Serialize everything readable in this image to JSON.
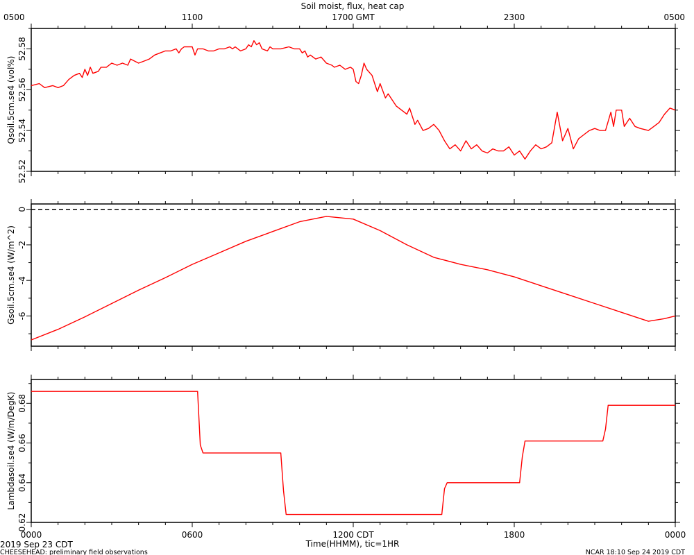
{
  "top_axis": {
    "title": "Soil moist, flux, heat cap",
    "ticks": [
      {
        "hour": 0,
        "label": "0500"
      },
      {
        "hour": 6,
        "label": "1100"
      },
      {
        "hour": 12,
        "label": "1700 GMT"
      },
      {
        "hour": 18,
        "label": "2300"
      },
      {
        "hour": 24,
        "label": "0500"
      }
    ]
  },
  "bottom_axis": {
    "title": "Time(HHMM), tic=1HR",
    "ticks": [
      {
        "hour": 0,
        "label": "0000"
      },
      {
        "hour": 6,
        "label": "0600"
      },
      {
        "hour": 12,
        "label": "1200 CDT"
      },
      {
        "hour": 18,
        "label": "1800"
      },
      {
        "hour": 24,
        "label": "0000"
      }
    ],
    "date_label": "2019 Sep 23 CDT"
  },
  "footer": {
    "left": "CHEESEHEAD: preliminary field observations",
    "right": "NCAR 18:10 Sep 24 2019 CDT"
  },
  "colors": {
    "series": "#ff0000",
    "axes": "#000000"
  },
  "chart_data": [
    {
      "type": "line",
      "ylabel": "Qsoil.5cm.se4 (vol%)",
      "ylim": [
        52.52,
        52.59
      ],
      "yticks": [
        52.52,
        52.54,
        52.56,
        52.58
      ],
      "ytick_labels": [
        "52.52",
        "52.54",
        "52.56",
        "52.58"
      ],
      "xlim": [
        0,
        24
      ],
      "x_units": "hours since 0000 CDT",
      "points": [
        [
          0,
          52.562
        ],
        [
          0.3,
          52.563
        ],
        [
          0.5,
          52.561
        ],
        [
          0.8,
          52.562
        ],
        [
          1.0,
          52.561
        ],
        [
          1.2,
          52.562
        ],
        [
          1.4,
          52.565
        ],
        [
          1.6,
          52.567
        ],
        [
          1.8,
          52.568
        ],
        [
          1.9,
          52.566
        ],
        [
          2.0,
          52.57
        ],
        [
          2.1,
          52.567
        ],
        [
          2.2,
          52.571
        ],
        [
          2.3,
          52.568
        ],
        [
          2.5,
          52.569
        ],
        [
          2.6,
          52.571
        ],
        [
          2.8,
          52.571
        ],
        [
          3.0,
          52.573
        ],
        [
          3.2,
          52.572
        ],
        [
          3.4,
          52.573
        ],
        [
          3.6,
          52.572
        ],
        [
          3.7,
          52.575
        ],
        [
          4.0,
          52.573
        ],
        [
          4.2,
          52.574
        ],
        [
          4.4,
          52.575
        ],
        [
          4.6,
          52.577
        ],
        [
          4.8,
          52.578
        ],
        [
          5.0,
          52.579
        ],
        [
          5.2,
          52.579
        ],
        [
          5.4,
          52.58
        ],
        [
          5.5,
          52.578
        ],
        [
          5.6,
          52.58
        ],
        [
          5.7,
          52.581
        ],
        [
          6.0,
          52.581
        ],
        [
          6.1,
          52.577
        ],
        [
          6.2,
          52.58
        ],
        [
          6.4,
          52.58
        ],
        [
          6.6,
          52.579
        ],
        [
          6.8,
          52.579
        ],
        [
          7.0,
          52.58
        ],
        [
          7.2,
          52.58
        ],
        [
          7.4,
          52.581
        ],
        [
          7.5,
          52.58
        ],
        [
          7.6,
          52.581
        ],
        [
          7.8,
          52.579
        ],
        [
          8.0,
          52.58
        ],
        [
          8.1,
          52.582
        ],
        [
          8.2,
          52.581
        ],
        [
          8.3,
          52.584
        ],
        [
          8.4,
          52.582
        ],
        [
          8.5,
          52.583
        ],
        [
          8.6,
          52.58
        ],
        [
          8.8,
          52.579
        ],
        [
          8.9,
          52.581
        ],
        [
          9.0,
          52.58
        ],
        [
          9.3,
          52.58
        ],
        [
          9.6,
          52.581
        ],
        [
          9.8,
          52.58
        ],
        [
          10.0,
          52.58
        ],
        [
          10.1,
          52.578
        ],
        [
          10.2,
          52.579
        ],
        [
          10.3,
          52.576
        ],
        [
          10.4,
          52.577
        ],
        [
          10.6,
          52.575
        ],
        [
          10.8,
          52.576
        ],
        [
          11.0,
          52.573
        ],
        [
          11.2,
          52.572
        ],
        [
          11.3,
          52.571
        ],
        [
          11.5,
          52.572
        ],
        [
          11.7,
          52.57
        ],
        [
          11.9,
          52.571
        ],
        [
          12.0,
          52.57
        ],
        [
          12.1,
          52.564
        ],
        [
          12.2,
          52.563
        ],
        [
          12.3,
          52.567
        ],
        [
          12.4,
          52.573
        ],
        [
          12.5,
          52.57
        ],
        [
          12.7,
          52.567
        ],
        [
          12.8,
          52.563
        ],
        [
          12.9,
          52.559
        ],
        [
          13.0,
          52.563
        ],
        [
          13.2,
          52.556
        ],
        [
          13.3,
          52.558
        ],
        [
          13.5,
          52.554
        ],
        [
          13.6,
          52.552
        ],
        [
          13.8,
          52.55
        ],
        [
          14.0,
          52.548
        ],
        [
          14.1,
          52.551
        ],
        [
          14.3,
          52.543
        ],
        [
          14.4,
          52.545
        ],
        [
          14.6,
          52.54
        ],
        [
          14.8,
          52.541
        ],
        [
          15.0,
          52.543
        ],
        [
          15.2,
          52.54
        ],
        [
          15.4,
          52.535
        ],
        [
          15.5,
          52.533
        ],
        [
          15.6,
          52.531
        ],
        [
          15.8,
          52.533
        ],
        [
          16.0,
          52.53
        ],
        [
          16.2,
          52.535
        ],
        [
          16.4,
          52.531
        ],
        [
          16.6,
          52.533
        ],
        [
          16.8,
          52.53
        ],
        [
          17.0,
          52.529
        ],
        [
          17.2,
          52.531
        ],
        [
          17.4,
          52.53
        ],
        [
          17.6,
          52.53
        ],
        [
          17.8,
          52.532
        ],
        [
          18.0,
          52.528
        ],
        [
          18.2,
          52.53
        ],
        [
          18.4,
          52.526
        ],
        [
          18.6,
          52.53
        ],
        [
          18.8,
          52.533
        ],
        [
          19.0,
          52.531
        ],
        [
          19.2,
          52.532
        ],
        [
          19.4,
          52.534
        ],
        [
          19.6,
          52.549
        ],
        [
          19.8,
          52.535
        ],
        [
          20.0,
          52.541
        ],
        [
          20.2,
          52.531
        ],
        [
          20.4,
          52.536
        ],
        [
          20.6,
          52.538
        ],
        [
          20.8,
          52.54
        ],
        [
          21.0,
          52.541
        ],
        [
          21.2,
          52.54
        ],
        [
          21.4,
          52.54
        ],
        [
          21.6,
          52.549
        ],
        [
          21.7,
          52.542
        ],
        [
          21.8,
          52.55
        ],
        [
          22.0,
          52.55
        ],
        [
          22.1,
          52.542
        ],
        [
          22.3,
          52.546
        ],
        [
          22.5,
          52.542
        ],
        [
          22.7,
          52.541
        ],
        [
          23.0,
          52.54
        ],
        [
          23.2,
          52.542
        ],
        [
          23.4,
          52.544
        ],
        [
          23.6,
          52.548
        ],
        [
          23.8,
          52.551
        ],
        [
          24.0,
          52.55
        ]
      ]
    },
    {
      "type": "line",
      "ylabel": "Gsoil.5cm.se4 (W/m^2)",
      "ylim": [
        -7.7,
        0.3
      ],
      "yticks": [
        -6,
        -4,
        -2,
        0
      ],
      "ytick_labels": [
        "-6",
        "-4",
        "-2",
        "0"
      ],
      "xlim": [
        0,
        24
      ],
      "x_units": "hours since 0000 CDT",
      "reference_line": {
        "y": 0,
        "style": "dashed"
      },
      "points": [
        [
          0,
          -7.35
        ],
        [
          1,
          -6.75
        ],
        [
          2,
          -6.05
        ],
        [
          3,
          -5.3
        ],
        [
          4,
          -4.55
        ],
        [
          5,
          -3.85
        ],
        [
          6,
          -3.1
        ],
        [
          7,
          -2.45
        ],
        [
          8,
          -1.8
        ],
        [
          9,
          -1.25
        ],
        [
          10,
          -0.7
        ],
        [
          11,
          -0.4
        ],
        [
          12,
          -0.55
        ],
        [
          13,
          -1.2
        ],
        [
          14,
          -2.0
        ],
        [
          15,
          -2.7
        ],
        [
          16,
          -3.1
        ],
        [
          17,
          -3.4
        ],
        [
          18,
          -3.8
        ],
        [
          19,
          -4.3
        ],
        [
          20,
          -4.8
        ],
        [
          21,
          -5.3
        ],
        [
          22,
          -5.8
        ],
        [
          23,
          -6.3
        ],
        [
          23.6,
          -6.15
        ],
        [
          24,
          -6.0
        ]
      ]
    },
    {
      "type": "line",
      "ylabel": "Lambdasoil.se4 (W/m/DegK)",
      "ylim": [
        0.62,
        0.692
      ],
      "yticks": [
        0.62,
        0.64,
        0.66,
        0.68
      ],
      "ytick_labels": [
        "0.62",
        "0.64",
        "0.66",
        "0.68"
      ],
      "xlim": [
        0,
        24
      ],
      "x_units": "hours since 0000 CDT",
      "points": [
        [
          0,
          0.686
        ],
        [
          6.2,
          0.686
        ],
        [
          6.3,
          0.659
        ],
        [
          6.4,
          0.655
        ],
        [
          9.3,
          0.655
        ],
        [
          9.4,
          0.636
        ],
        [
          9.5,
          0.624
        ],
        [
          15.3,
          0.624
        ],
        [
          15.4,
          0.637
        ],
        [
          15.5,
          0.64
        ],
        [
          18.2,
          0.64
        ],
        [
          18.3,
          0.653
        ],
        [
          18.4,
          0.661
        ],
        [
          21.3,
          0.661
        ],
        [
          21.4,
          0.667
        ],
        [
          21.5,
          0.679
        ],
        [
          24,
          0.679
        ]
      ]
    }
  ]
}
